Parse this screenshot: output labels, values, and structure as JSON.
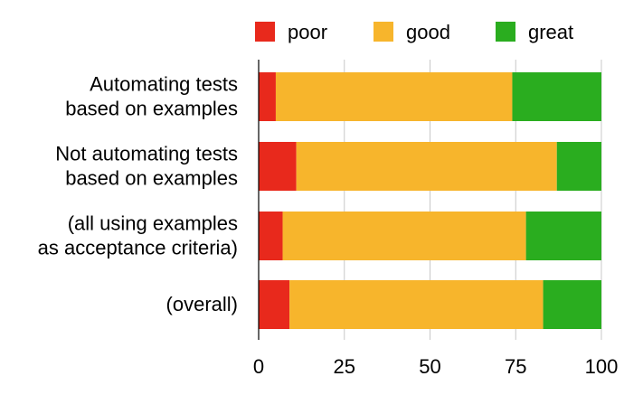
{
  "chart_data": {
    "type": "bar",
    "orientation": "horizontal",
    "stacked": true,
    "categories": [
      "Automating tests\nbased on examples",
      "Not automating tests\nbased on examples",
      "(all using examples\nas acceptance criteria)",
      "(overall)"
    ],
    "series": [
      {
        "name": "poor",
        "color": "#e8291c",
        "values": [
          5,
          11,
          7,
          9
        ]
      },
      {
        "name": "good",
        "color": "#f7b52c",
        "values": [
          69,
          76,
          71,
          74
        ]
      },
      {
        "name": "great",
        "color": "#2aad1f",
        "values": [
          26,
          13,
          22,
          17
        ]
      }
    ],
    "xlim": [
      0,
      100
    ],
    "xticks": [
      0,
      25,
      50,
      75,
      100
    ],
    "xlabel": "",
    "ylabel": "",
    "title": "",
    "grid": "vertical",
    "legend": "top"
  }
}
